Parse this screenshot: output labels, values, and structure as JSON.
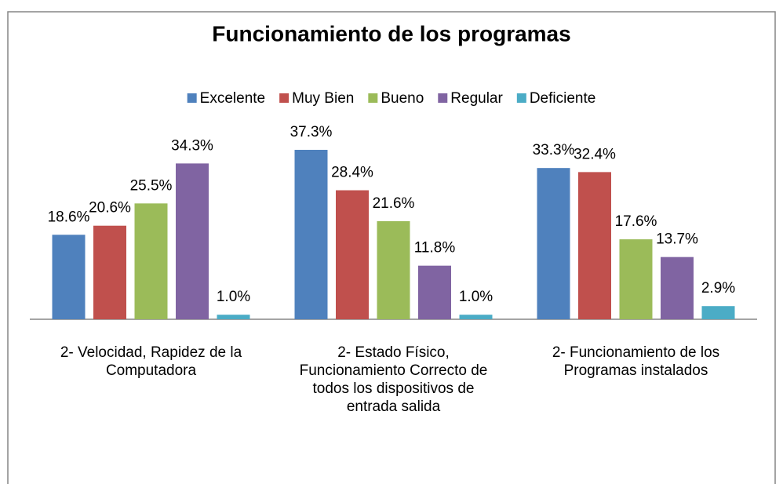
{
  "chart_data": {
    "type": "bar",
    "title": "Funcionamiento de los programas",
    "categories": [
      "2- Velocidad, Rapidez de la Computadora",
      "2- Estado Físico, Funcionamiento Correcto de todos los dispositivos de entrada salida",
      "2- Funcionamiento de los Programas instalados"
    ],
    "series": [
      {
        "name": "Excelente",
        "color": "#4f81bd",
        "values": [
          18.6,
          37.3,
          33.3
        ],
        "value_labels": [
          "18.6%",
          "37.3%",
          "33.3%"
        ]
      },
      {
        "name": "Muy Bien",
        "color": "#c0504d",
        "values": [
          20.6,
          28.4,
          32.4
        ],
        "value_labels": [
          "20.6%",
          "28.4%",
          "32.4%"
        ]
      },
      {
        "name": "Bueno",
        "color": "#9bbb59",
        "values": [
          25.5,
          21.6,
          17.6
        ],
        "value_labels": [
          "25.5%",
          "21.6%",
          "17.6%"
        ]
      },
      {
        "name": "Regular",
        "color": "#8064a2",
        "values": [
          34.3,
          11.8,
          13.7
        ],
        "value_labels": [
          "34.3%",
          "11.8%",
          "13.7%"
        ]
      },
      {
        "name": "Deficiente",
        "color": "#4bacc6",
        "values": [
          1.0,
          1.0,
          2.9
        ],
        "value_labels": [
          "1.0%",
          "1.0%",
          "2.9%"
        ]
      }
    ],
    "legend": "top"
  }
}
